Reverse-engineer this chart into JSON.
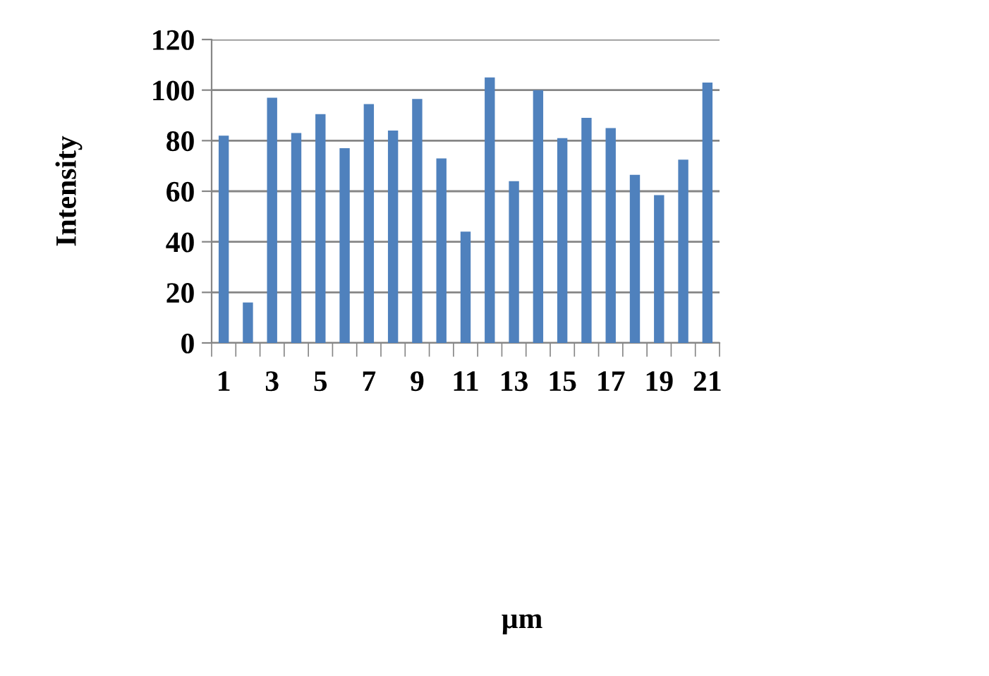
{
  "chart_data": {
    "type": "bar",
    "annotations": [
      "µm"
    ],
    "ylabel": "Intensity",
    "categories": [
      "1",
      null,
      "3",
      null,
      "5",
      null,
      "7",
      null,
      "9",
      null,
      "11",
      null,
      "13",
      null,
      "15",
      null,
      "17",
      null,
      "19",
      null,
      "21"
    ],
    "values": [
      82,
      16,
      97,
      83,
      90.5,
      77,
      94.5,
      84,
      96.5,
      73,
      44,
      105,
      64,
      100,
      81,
      89,
      85,
      66.5,
      58.5,
      72.5,
      103
    ],
    "color": "#4f81bd",
    "ylim": [
      0,
      120
    ],
    "yticks": [
      0,
      20,
      40,
      60,
      80,
      100,
      120
    ],
    "grid": "y",
    "legend": false
  }
}
